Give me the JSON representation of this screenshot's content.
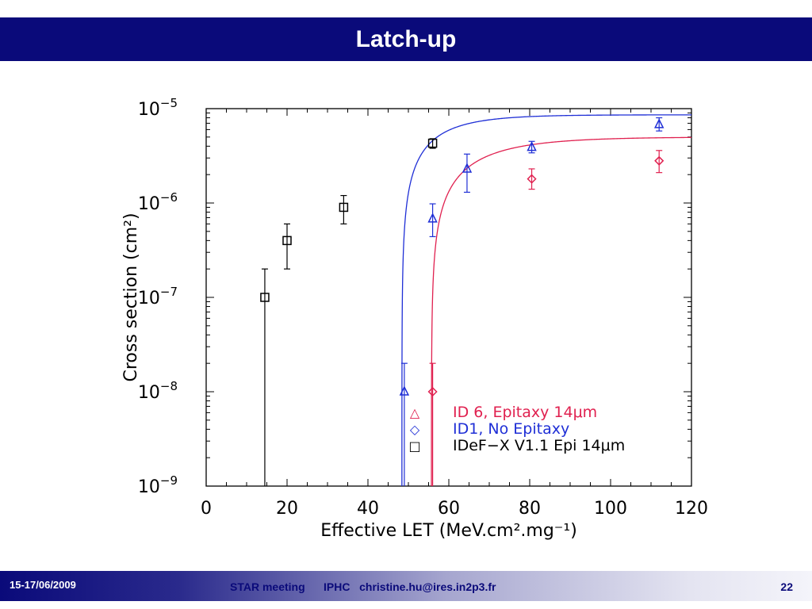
{
  "slide": {
    "title": "Latch-up",
    "footer": {
      "date": "15-17/06/2009",
      "meeting": "STAR meeting",
      "institute": "IPHC",
      "email": "christine.hu@ires.in2p3.fr",
      "page": "22"
    }
  },
  "chart_data": {
    "type": "scatter",
    "title": "",
    "xlabel": "Effective LET (MeV.cm².mg⁻¹)",
    "ylabel": "Cross section (cm²)",
    "xlim": [
      0,
      120
    ],
    "ylim": [
      1e-09,
      1e-05
    ],
    "yscale": "log",
    "grid": false,
    "legend_position": "bottom-right",
    "x_ticks": [
      0,
      20,
      40,
      60,
      80,
      100,
      120
    ],
    "y_ticks": [
      {
        "value": 1e-09,
        "base": "10",
        "exp": "−9"
      },
      {
        "value": 1e-08,
        "base": "10",
        "exp": "−8"
      },
      {
        "value": 1e-07,
        "base": "10",
        "exp": "−7"
      },
      {
        "value": 1e-06,
        "base": "10",
        "exp": "−6"
      },
      {
        "value": 1e-05,
        "base": "10",
        "exp": "−5"
      }
    ],
    "series": [
      {
        "name": "ID 6, Epitaxy 14μm",
        "legend_symbol": "△",
        "marker": "diamond",
        "color": "#e0204f",
        "points": [
          {
            "x": 56,
            "y": 1e-08,
            "ylo": 1e-09,
            "yhi": 2e-08
          },
          {
            "x": 80.5,
            "y": 1.8e-06,
            "ylo": 1.4e-06,
            "yhi": 2.3e-06
          },
          {
            "x": 112,
            "y": 2.8e-06,
            "ylo": 2.1e-06,
            "yhi": 3.6e-06
          }
        ],
        "fit": {
          "x0": 55.7,
          "w": 14,
          "sat": 5e-06
        }
      },
      {
        "name": "ID1, No Epitaxy",
        "legend_symbol": "◇",
        "marker": "triangle",
        "color": "#1f2fd6",
        "points": [
          {
            "x": 49,
            "y": 1e-08,
            "ylo": 1e-09,
            "yhi": 2e-08
          },
          {
            "x": 56,
            "y": 6.8e-07,
            "ylo": 4.4e-07,
            "yhi": 9.8e-07
          },
          {
            "x": 64.5,
            "y": 2.3e-06,
            "ylo": 1.3e-06,
            "yhi": 3.3e-06
          },
          {
            "x": 80.5,
            "y": 3.9e-06,
            "ylo": 3.4e-06,
            "yhi": 4.5e-06
          },
          {
            "x": 112,
            "y": 6.8e-06,
            "ylo": 5.8e-06,
            "yhi": 8e-06
          }
        ],
        "fit": {
          "x0": 48.4,
          "w": 10,
          "sat": 8.6e-06
        }
      },
      {
        "name": "IDeF−X V1.1 Epi 14μm",
        "legend_symbol": "□",
        "marker": "square",
        "color": "#000000",
        "points": [
          {
            "x": 14.5,
            "y": 1e-07,
            "ylo": 1e-09,
            "yhi": 2e-07
          },
          {
            "x": 20,
            "y": 4e-07,
            "ylo": 2e-07,
            "yhi": 6e-07
          },
          {
            "x": 34,
            "y": 9e-07,
            "ylo": 6e-07,
            "yhi": 1.2e-06
          },
          {
            "x": 56,
            "y": 4.3e-06,
            "ylo": 3.8e-06,
            "yhi": 4.8e-06
          }
        ]
      }
    ]
  }
}
